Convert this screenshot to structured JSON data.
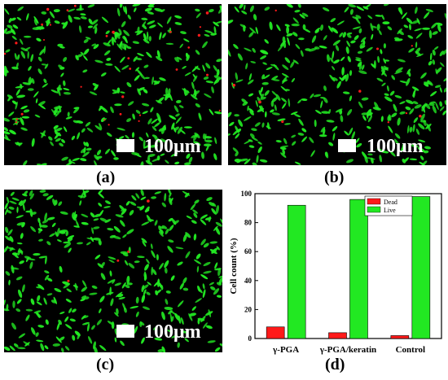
{
  "panels": [
    {
      "label": "(a)",
      "scale_text": "100μm"
    },
    {
      "label": "(b)",
      "scale_text": "100μm"
    },
    {
      "label": "(c)",
      "scale_text": "100μm"
    },
    {
      "label": "(d)"
    }
  ],
  "colors": {
    "live": "#22e822",
    "dead": "#ff1a1a",
    "background": "#000000"
  },
  "chart_data": {
    "type": "bar",
    "categories": [
      "γ-PGA",
      "γ-PGA/keratin",
      "Control"
    ],
    "series": [
      {
        "name": "Dead",
        "values": [
          8,
          4,
          2
        ],
        "color": "#ff1a1a"
      },
      {
        "name": "Live",
        "values": [
          92,
          96,
          98
        ],
        "color": "#22e822"
      }
    ],
    "ylabel": "Cell count (%)",
    "ylim": [
      0,
      100
    ],
    "yticks": [
      "0",
      "20",
      "40",
      "60",
      "80",
      "100"
    ],
    "legend_position": "top-right"
  }
}
